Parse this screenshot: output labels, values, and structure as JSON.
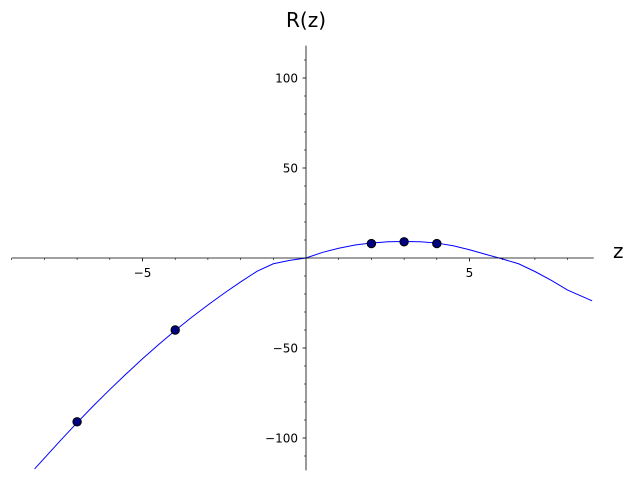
{
  "chart_data": {
    "type": "line",
    "title": "",
    "xlabel": "z",
    "ylabel": "R(z)",
    "xlim": [
      -9,
      8.8
    ],
    "ylim": [
      -118,
      118
    ],
    "grid": false,
    "x_ticks_major": [
      -5,
      5
    ],
    "x_ticks_minor": [
      -9,
      -8,
      -7,
      -6,
      -4,
      -3,
      -2,
      -1,
      1,
      2,
      3,
      4,
      6,
      7,
      8
    ],
    "y_ticks_major": [
      -100,
      -50,
      50,
      100
    ],
    "y_ticks_minor": [
      -110,
      -90,
      -80,
      -70,
      -60,
      -40,
      -30,
      -20,
      -10,
      10,
      20,
      30,
      40,
      60,
      70,
      80,
      90,
      110
    ],
    "x_tick_labels": [
      "−5",
      "5"
    ],
    "y_tick_labels": [
      "−100",
      "−50",
      "50",
      "100"
    ],
    "series": [
      {
        "type": "line",
        "color": "#0000ff",
        "x": [
          -8.3,
          -7.5,
          -7,
          -6.5,
          -6,
          -5.5,
          -5,
          -4.5,
          -4,
          -3.5,
          -3,
          -2.5,
          -2,
          -1.5,
          -1,
          -0.5,
          0,
          0.5,
          1,
          1.5,
          2,
          2.5,
          3,
          3.5,
          4,
          4.5,
          5,
          5.5,
          6,
          6.5,
          7,
          7.5,
          8,
          8.75
        ],
        "y": [
          -117.2,
          -101.2,
          -91.5,
          -82.1,
          -73.1,
          -64.4,
          -56.0,
          -48.0,
          -40.3,
          -33.0,
          -26.1,
          -19.5,
          -13.3,
          -7.4,
          -3.2,
          -1.3,
          0.0,
          3.1,
          5.4,
          7.2,
          8.3,
          9.0,
          9.2,
          9.0,
          8.3,
          6.8,
          4.6,
          2.0,
          -0.5,
          -3.2,
          -7.5,
          -12.4,
          -17.8,
          -23.8
        ]
      },
      {
        "type": "scatter",
        "color": "#000080",
        "x": [
          -7,
          -4,
          2,
          3,
          4
        ],
        "y": [
          -91,
          -40,
          8,
          9,
          8
        ]
      }
    ]
  }
}
